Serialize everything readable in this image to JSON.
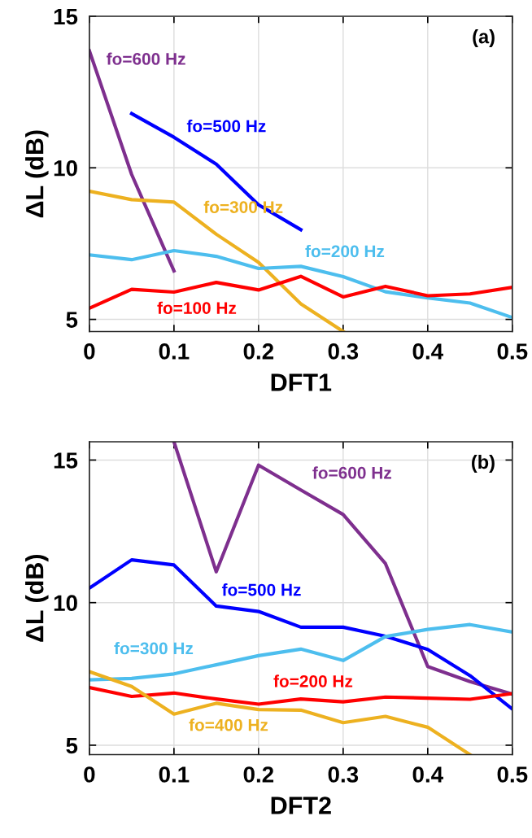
{
  "chart_data": [
    {
      "type": "line",
      "xlabel": "DFT1",
      "ylabel": "ΔL (dB)",
      "annotations": [
        "(a)"
      ],
      "xlim": [
        0,
        0.5
      ],
      "ylim": [
        4.6,
        15
      ],
      "xticks": [
        0,
        0.1,
        0.2,
        0.3,
        0.4,
        0.5
      ],
      "yticks": [
        5,
        10,
        15
      ],
      "grid": true,
      "legend": false,
      "marker": "none",
      "line_style": "solid",
      "x": [
        0,
        0.05,
        0.1,
        0.15,
        0.2,
        0.25,
        0.3,
        0.35,
        0.4,
        0.45,
        0.5
      ],
      "series": [
        {
          "name": "fo=600 Hz",
          "color": "#7e2f8e",
          "values": [
            13.86,
            9.78,
            6.6,
            null,
            null,
            null,
            null,
            null,
            null,
            null,
            null
          ]
        },
        {
          "name": "fo=500 Hz",
          "color": "#0000ff",
          "values": [
            null,
            11.79,
            11.01,
            10.12,
            8.78,
            7.96,
            null,
            null,
            null,
            null,
            null
          ]
        },
        {
          "name": "fo=300 Hz",
          "color": "#edb120",
          "values": [
            9.23,
            8.95,
            8.87,
            7.81,
            6.88,
            5.51,
            4.6,
            null,
            null,
            null,
            null
          ]
        },
        {
          "name": "fo=200 Hz",
          "color": "#4dbeee",
          "values": [
            7.13,
            6.97,
            7.27,
            7.08,
            6.68,
            6.75,
            6.41,
            5.91,
            5.71,
            5.54,
            5.06
          ]
        },
        {
          "name": "fo=100 Hz",
          "color": "#ff0000",
          "values": [
            5.37,
            5.99,
            5.9,
            6.22,
            5.97,
            6.42,
            5.74,
            6.09,
            5.78,
            5.84,
            6.06
          ]
        }
      ]
    },
    {
      "type": "line",
      "xlabel": "DFT2",
      "ylabel": "ΔL (dB)",
      "annotations": [
        "(b)"
      ],
      "xlim": [
        0,
        0.5
      ],
      "ylim": [
        4.67,
        15.64
      ],
      "xticks": [
        0,
        0.1,
        0.2,
        0.3,
        0.4,
        0.5
      ],
      "yticks": [
        5,
        10,
        15
      ],
      "grid": true,
      "legend": false,
      "marker": "none",
      "line_style": "solid",
      "x": [
        0,
        0.05,
        0.1,
        0.15,
        0.2,
        0.25,
        0.3,
        0.35,
        0.4,
        0.45,
        0.5
      ],
      "series": [
        {
          "name": "fo=600 Hz",
          "color": "#7e2f8e",
          "values": [
            null,
            null,
            15.64,
            11.08,
            14.82,
            13.95,
            13.09,
            11.37,
            7.76,
            7.23,
            6.79
          ]
        },
        {
          "name": "fo=500 Hz",
          "color": "#0000ff",
          "values": [
            10.51,
            11.5,
            11.32,
            9.88,
            9.69,
            9.14,
            9.14,
            8.82,
            8.36,
            7.44,
            6.27
          ]
        },
        {
          "name": "fo=300 Hz",
          "color": "#4dbeee",
          "values": [
            7.29,
            7.34,
            7.5,
            7.82,
            8.14,
            8.37,
            7.97,
            8.81,
            9.06,
            9.23,
            8.97
          ]
        },
        {
          "name": "fo=200 Hz",
          "color": "#ff0000",
          "values": [
            7.02,
            6.71,
            6.83,
            6.62,
            6.44,
            6.62,
            6.52,
            6.69,
            6.65,
            6.61,
            6.81
          ]
        },
        {
          "name": "fo=400 Hz",
          "color": "#edb120",
          "values": [
            7.58,
            7.06,
            6.09,
            6.47,
            6.25,
            6.23,
            5.79,
            6.01,
            5.63,
            4.67,
            null
          ]
        }
      ]
    }
  ]
}
